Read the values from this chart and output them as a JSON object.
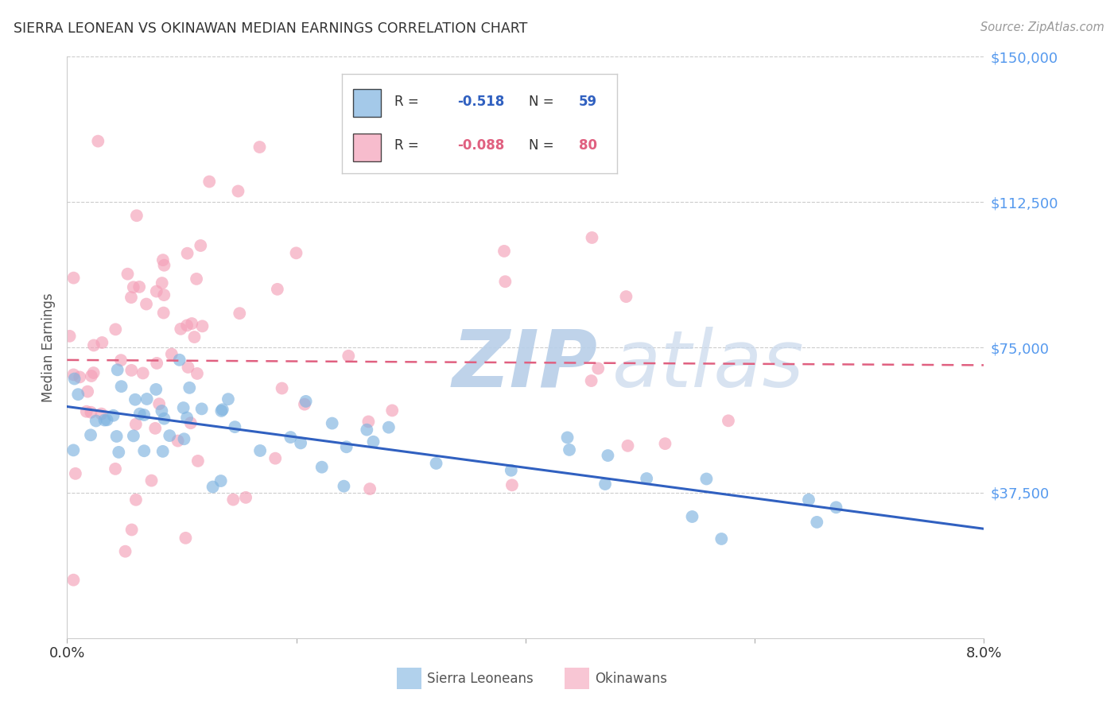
{
  "title": "SIERRA LEONEAN VS OKINAWAN MEDIAN EARNINGS CORRELATION CHART",
  "source": "Source: ZipAtlas.com",
  "ylabel": "Median Earnings",
  "y_ticks": [
    0,
    37500,
    75000,
    112500,
    150000
  ],
  "y_tick_labels": [
    "",
    "$37,500",
    "$75,000",
    "$112,500",
    "$150,000"
  ],
  "x_min": 0.0,
  "x_max": 0.08,
  "y_min": 0,
  "y_max": 150000,
  "background_color": "#ffffff",
  "grid_color": "#cccccc",
  "watermark_zip": "ZIP",
  "watermark_atlas": "atlas",
  "watermark_color_zip": "#c8d8ec",
  "watermark_color_atlas": "#c8d8ec",
  "legend_R_blue": "-0.518",
  "legend_N_blue": "59",
  "legend_R_pink": "-0.088",
  "legend_N_pink": "80",
  "blue_color": "#7EB3E0",
  "pink_color": "#F4A0B8",
  "blue_line_color": "#3060C0",
  "pink_line_color": "#E06080",
  "ytick_color": "#5599EE",
  "legend_label_color": "#333333",
  "legend_value_blue": "#3060C0",
  "legend_value_pink": "#E06080"
}
